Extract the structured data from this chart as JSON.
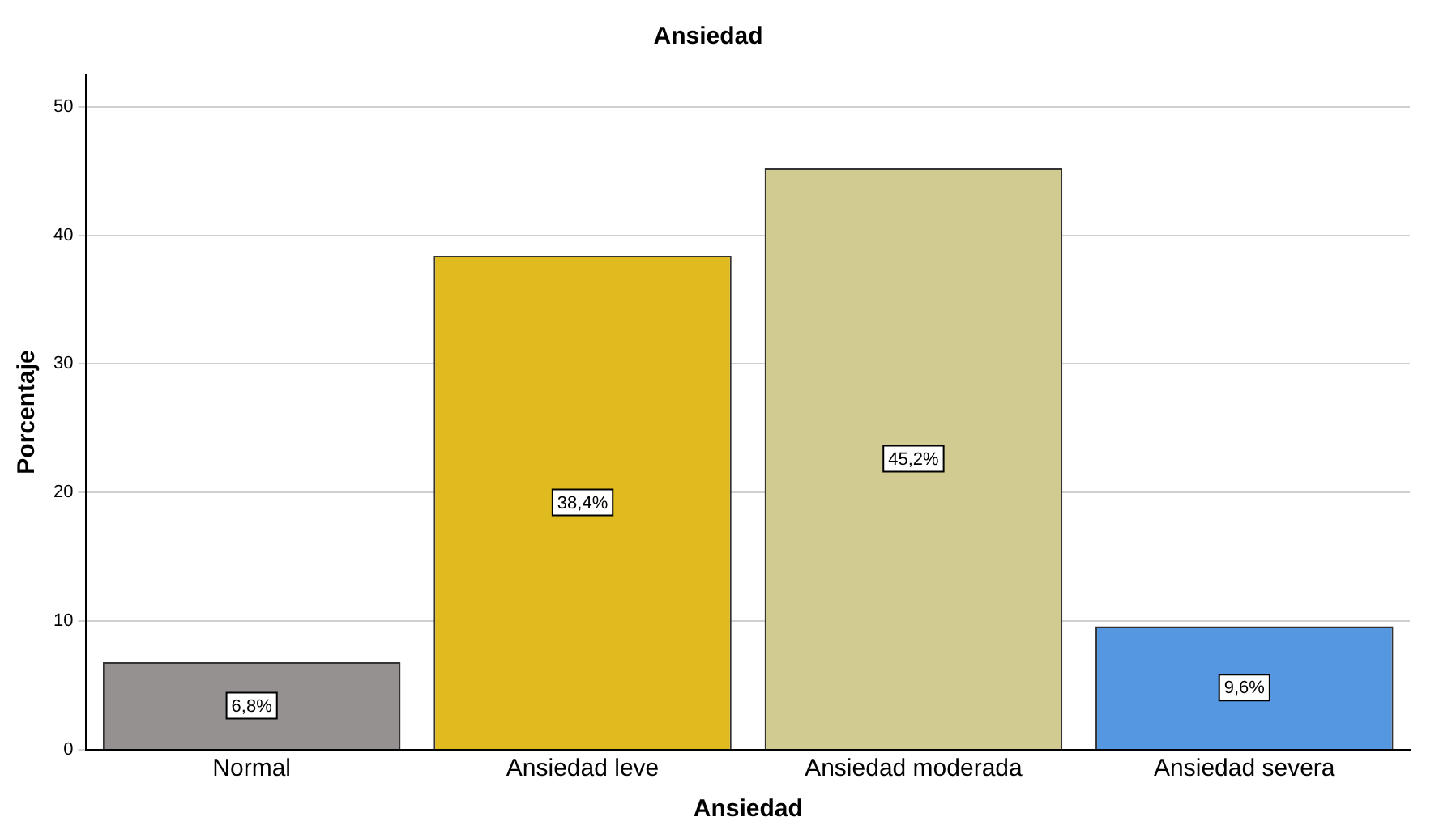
{
  "chart_data": {
    "type": "bar",
    "title": "Ansiedad",
    "xlabel": "Ansiedad",
    "ylabel": "Porcentaje",
    "categories": [
      "Normal",
      "Ansiedad leve",
      "Ansiedad moderada",
      "Ansiedad severa"
    ],
    "values": [
      6.8,
      38.4,
      45.2,
      9.6
    ],
    "colors": [
      "#959190",
      "#e0bb20",
      "#d2cb91",
      "#5597e0"
    ],
    "value_labels": [
      "6,8%",
      "38,4%",
      "45,2%",
      "9,6%"
    ],
    "ylim": [
      0,
      52.5
    ],
    "yticks": [
      0,
      10,
      20,
      30,
      40,
      50
    ],
    "grid": "y",
    "legend": false
  }
}
